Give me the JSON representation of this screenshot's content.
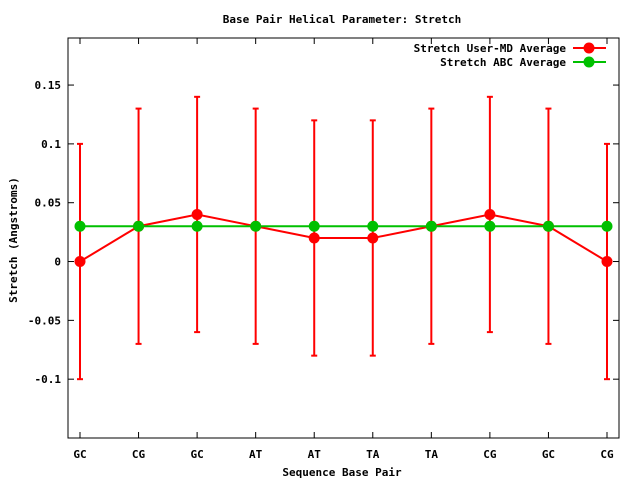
{
  "chart_data": {
    "type": "line",
    "title": "Base Pair Helical Parameter: Stretch",
    "xlabel": "Sequence Base Pair",
    "ylabel": "Stretch (Angstroms)",
    "categories": [
      "GC",
      "CG",
      "GC",
      "AT",
      "AT",
      "TA",
      "TA",
      "CG",
      "GC",
      "CG"
    ],
    "ylim": [
      -0.15,
      0.19
    ],
    "yticks": [
      -0.1,
      -0.05,
      0,
      0.05,
      0.1,
      0.15
    ],
    "ytick_labels": [
      "-0.1",
      "-0.05",
      "0",
      "0.05",
      "0.1",
      "0.15"
    ],
    "legend_position": "top-right",
    "grid": false,
    "series": [
      {
        "name": "Stretch User-MD Average",
        "color": "#ff0000",
        "values": [
          0.0,
          0.03,
          0.04,
          0.03,
          0.02,
          0.02,
          0.03,
          0.04,
          0.03,
          0.0
        ],
        "error_bars": [
          [
            -0.1,
            0.1
          ],
          [
            -0.07,
            0.13
          ],
          [
            -0.06,
            0.14
          ],
          [
            -0.07,
            0.13
          ],
          [
            -0.08,
            0.12
          ],
          [
            -0.08,
            0.12
          ],
          [
            -0.07,
            0.13
          ],
          [
            -0.06,
            0.14
          ],
          [
            -0.07,
            0.13
          ],
          [
            -0.1,
            0.1
          ]
        ]
      },
      {
        "name": "Stretch ABC Average",
        "color": "#00c000",
        "values": [
          0.03,
          0.03,
          0.03,
          0.03,
          0.03,
          0.03,
          0.03,
          0.03,
          0.03,
          0.03
        ]
      }
    ]
  }
}
